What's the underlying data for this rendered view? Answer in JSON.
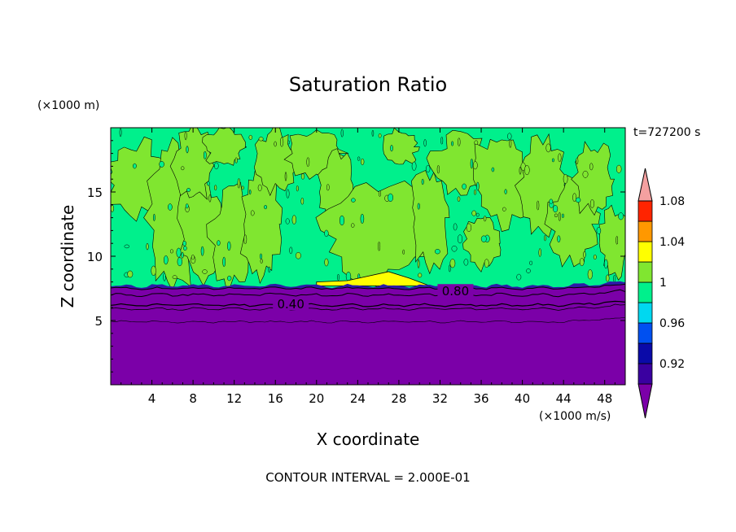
{
  "chart_data": {
    "type": "heatmap",
    "title": "Saturation Ratio",
    "xlabel": "X coordinate",
    "ylabel": "Z coordinate",
    "x_unit": "(×1000 m/s)",
    "y_unit": "(×1000 m)",
    "time_label": "t=727200 s",
    "footer": "CONTOUR INTERVAL = 2.000E-01",
    "xlim": [
      0,
      50
    ],
    "ylim": [
      0,
      20
    ],
    "x_ticks": [
      4,
      8,
      12,
      16,
      20,
      24,
      28,
      32,
      36,
      40,
      44,
      48
    ],
    "y_ticks": [
      5,
      10,
      15
    ],
    "contour_labels": [
      {
        "text": "0.40",
        "x": 17.5,
        "z": 6.2
      },
      {
        "text": "0.80",
        "x": 33.5,
        "z": 7.2
      }
    ],
    "colorbar": {
      "levels": [
        0.92,
        0.96,
        1,
        1.04,
        1.08
      ],
      "level_labels": [
        "0.92",
        "0.96",
        "1",
        "1.04",
        "1.08"
      ],
      "colors": [
        "#7b00a8",
        "#3a00a0",
        "#0a0aa8",
        "#0050f0",
        "#00d8f0",
        "#00f08c",
        "#80e630",
        "#ffff00",
        "#ff9800",
        "#ff2400",
        "#f4a0a0"
      ]
    },
    "regions": {
      "dry_layer_top_z": 7.6,
      "moist_layer_base_z": 7.6,
      "supersat_cap_x": [
        20,
        31
      ],
      "supersat_cap_peak_z": 8.8
    }
  }
}
